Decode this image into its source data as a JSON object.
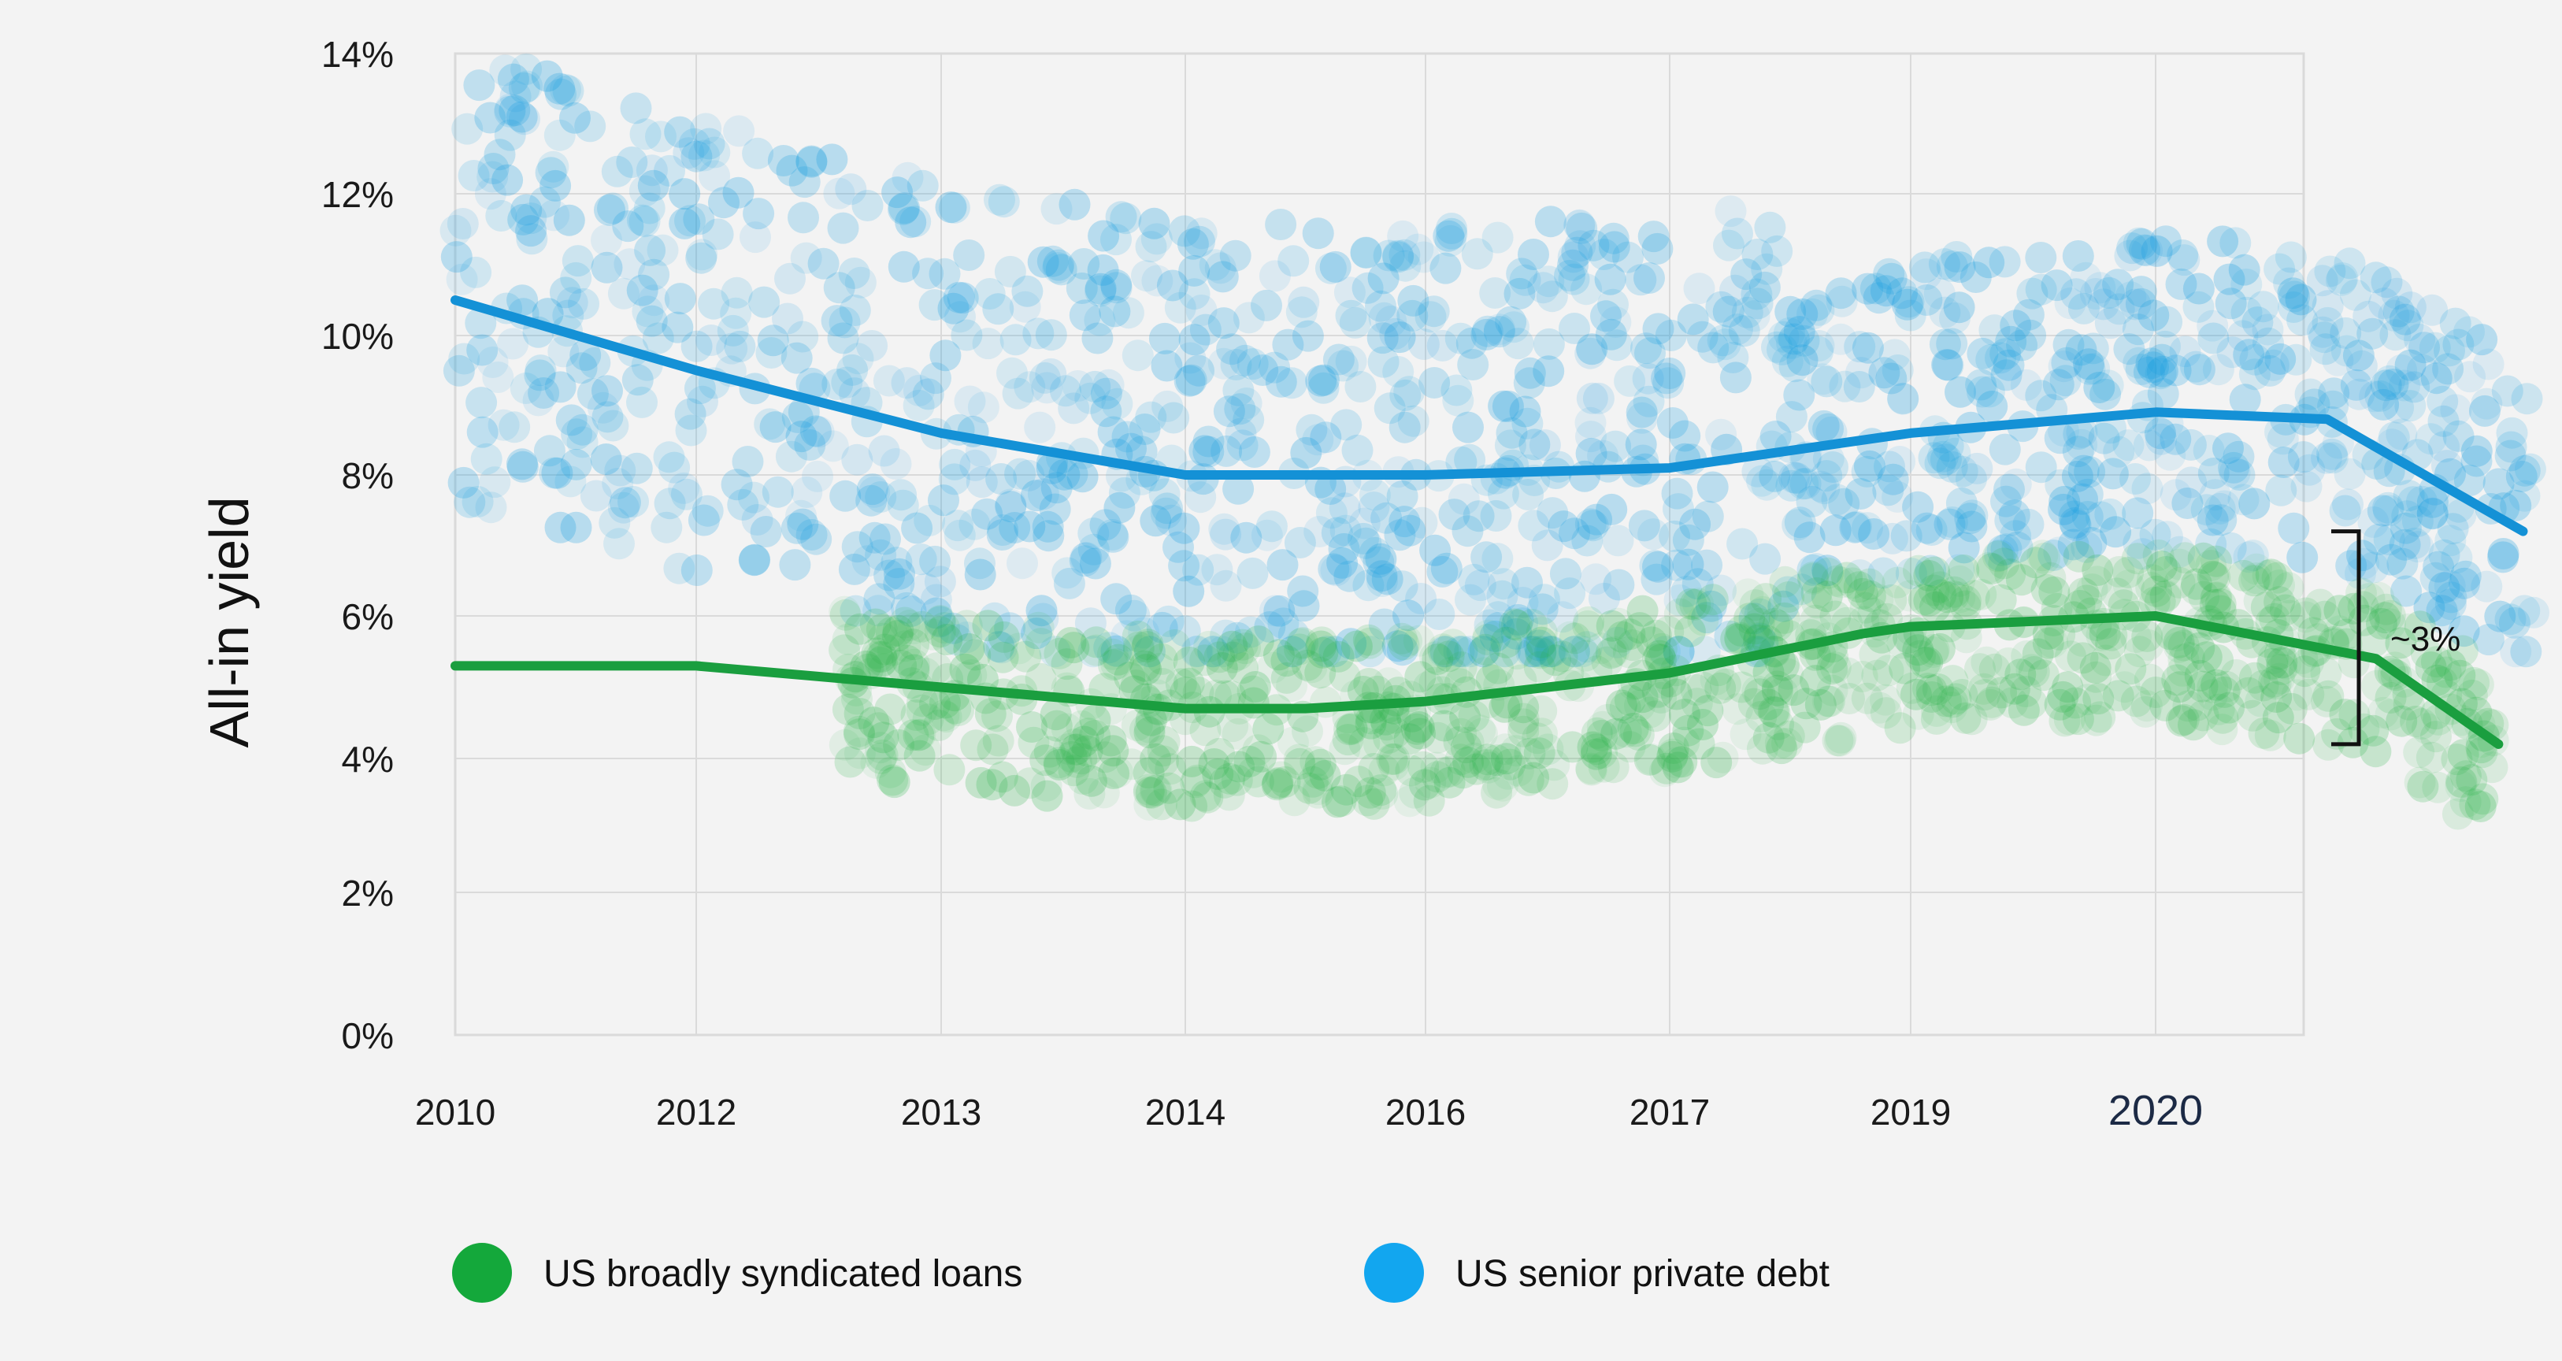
{
  "chart_data": {
    "type": "scatter",
    "ylabel": "All-in yield",
    "xlabel": "",
    "title": "",
    "x_tick_labels": [
      "2010",
      "2012",
      "2013",
      "2014",
      "2016",
      "2017",
      "2019",
      "2020"
    ],
    "y_tick_labels": [
      "0%",
      "2%",
      "4%",
      "6%",
      "8%",
      "10%",
      "12%",
      "14%"
    ],
    "ylim": [
      0,
      14
    ],
    "grid": true,
    "legend": {
      "placement": "bottom",
      "items": [
        {
          "label": "US broadly syndicated loans",
          "color": "#14a83b"
        },
        {
          "label": "US senior private debt",
          "color": "#12a6ef"
        }
      ]
    },
    "annotation": {
      "text": "~3%",
      "from_y": 7.2,
      "to_y": 4.2
    },
    "series": [
      {
        "name": "US senior private debt",
        "color": "#1a9fe0",
        "trend_line_color": "#1491d6",
        "trend": [
          [
            0,
            10.5
          ],
          [
            1,
            9.5
          ],
          [
            2,
            8.6
          ],
          [
            3,
            8.0
          ],
          [
            4,
            8.0
          ],
          [
            5,
            8.1
          ],
          [
            5.7,
            8.45
          ],
          [
            6,
            8.6
          ],
          [
            7,
            8.9
          ],
          [
            7.7,
            8.8
          ],
          [
            8.5,
            7.2
          ]
        ],
        "scatter_range": [
          5.5,
          14
        ]
      },
      {
        "name": "US broadly syndicated loans",
        "color": "#2bb34a",
        "trend_line_color": "#1a9e3f",
        "trend": [
          [
            0,
            5.3
          ],
          [
            1,
            5.3
          ],
          [
            2,
            5.0
          ],
          [
            3,
            4.7
          ],
          [
            3.5,
            4.7
          ],
          [
            4,
            4.8
          ],
          [
            5,
            5.2
          ],
          [
            5.8,
            5.75
          ],
          [
            6,
            5.85
          ],
          [
            7,
            6.0
          ],
          [
            7.9,
            5.4
          ],
          [
            8.4,
            4.2
          ]
        ],
        "scatter_range": [
          2.5,
          7.0
        ]
      }
    ]
  }
}
